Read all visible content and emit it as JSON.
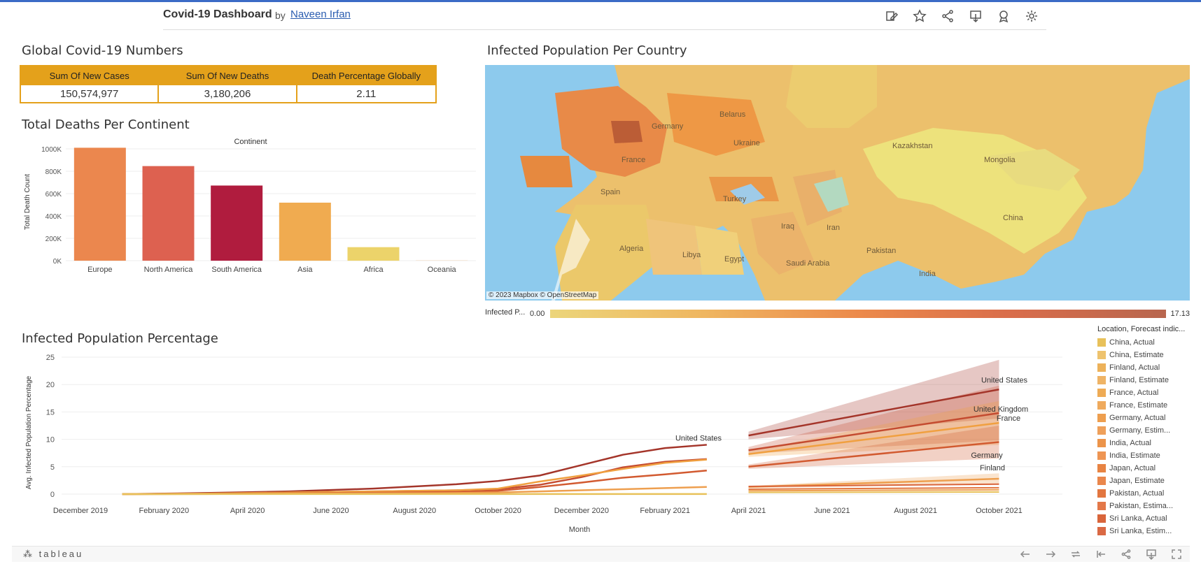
{
  "header": {
    "title": "Covid-19 Dashboard",
    "by": "by",
    "author": "Naveen Irfan",
    "icons": [
      "edit-icon",
      "star-icon",
      "share-icon",
      "download-icon",
      "badge-icon",
      "gear-icon"
    ]
  },
  "kpi": {
    "title": "Global Covid-19 Numbers",
    "columns": [
      {
        "header": "Sum Of New Cases",
        "value": "150,574,977"
      },
      {
        "header": "Sum Of New Deaths",
        "value": "3,180,206"
      },
      {
        "header": "Death Percentage Globally",
        "value": "2.11"
      }
    ]
  },
  "deaths_section": {
    "title": "Total Deaths Per Continent"
  },
  "map_section": {
    "title": "Infected Population Per Country",
    "attribution": "© 2023 Mapbox  © OpenStreetMap",
    "labels": [
      "Belarus",
      "Germany",
      "Ukraine",
      "France",
      "Kazakhstan",
      "Mongolia",
      "Spain",
      "Turkey",
      "China",
      "Iraq",
      "Iran",
      "Algeria",
      "Libya",
      "Egypt",
      "Saudi Arabia",
      "Pakistan",
      "India"
    ],
    "legend": {
      "label": "Infected P...",
      "min": "0.00",
      "max": "17.13"
    }
  },
  "line_section": {
    "title": "Infected Population Percentage",
    "legend_title": "Location, Forecast indic...",
    "legend_items": [
      {
        "label": "China, Actual",
        "color": "#e8c15a"
      },
      {
        "label": "China, Estimate",
        "color": "#eec36e"
      },
      {
        "label": "Finland, Actual",
        "color": "#edb25a"
      },
      {
        "label": "Finland, Estimate",
        "color": "#efb466"
      },
      {
        "label": "France, Actual",
        "color": "#eeab55"
      },
      {
        "label": "France, Estimate",
        "color": "#efaa5d"
      },
      {
        "label": "Germany, Actual",
        "color": "#ee9f4f"
      },
      {
        "label": "Germany, Estim...",
        "color": "#efa05a"
      },
      {
        "label": "India, Actual",
        "color": "#ec944a"
      },
      {
        "label": "India, Estimate",
        "color": "#ee9553"
      },
      {
        "label": "Japan, Actual",
        "color": "#e88443"
      },
      {
        "label": "Japan, Estimate",
        "color": "#ea874c"
      },
      {
        "label": "Pakistan, Actual",
        "color": "#e27640"
      },
      {
        "label": "Pakistan, Estima...",
        "color": "#e37849"
      },
      {
        "label": "Sri Lanka, Actual",
        "color": "#d9653b"
      },
      {
        "label": "Sri Lanka, Estim...",
        "color": "#da6944"
      }
    ]
  },
  "chart_data": [
    {
      "type": "bar",
      "title": "Total Deaths Per Continent",
      "header": "Continent",
      "categories": [
        "Europe",
        "North America",
        "South America",
        "Asia",
        "Africa",
        "Oceania"
      ],
      "values": [
        1010000,
        846000,
        672000,
        519000,
        121000,
        1000
      ],
      "colors": [
        "#eb874e",
        "#dd6150",
        "#b01c3e",
        "#f0ab50",
        "#ecd36a",
        "#e8a04e"
      ],
      "ylabel": "Total Death Count",
      "yticks": [
        "0K",
        "200K",
        "400K",
        "600K",
        "800K",
        "1000K"
      ],
      "ylim": [
        0,
        1050000
      ],
      "grid": true
    },
    {
      "type": "line",
      "title": "Infected Population Percentage",
      "xlabel": "Month",
      "ylabel": "Avg. Infected Population Percentage",
      "xticks": [
        "December 2019",
        "February 2020",
        "April 2020",
        "June 2020",
        "August 2020",
        "October 2020",
        "December 2020",
        "February 2021",
        "April 2021",
        "June 2021",
        "August 2021",
        "October 2021"
      ],
      "yticks": [
        "0",
        "5",
        "10",
        "15",
        "20",
        "25"
      ],
      "ylim": [
        0,
        25
      ],
      "labels": [
        "United States",
        "United States",
        "United Kingdom",
        "France",
        "Germany",
        "Finland"
      ],
      "x": [
        "Jan 2020",
        "Mar 2020",
        "May 2020",
        "Jul 2020",
        "Sep 2020",
        "Oct 2020",
        "Nov 2020",
        "Dec 2020",
        "Jan 2021",
        "Feb 2021",
        "Mar 2021"
      ],
      "series": [
        {
          "name": "United States",
          "color": "#a4352a",
          "values": [
            0,
            0.2,
            0.5,
            1.0,
            1.8,
            2.4,
            3.4,
            5.3,
            7.2,
            8.4,
            9.0
          ]
        },
        {
          "name": "United Kingdom",
          "color": "#c44b30",
          "values": [
            0,
            0.1,
            0.3,
            0.5,
            0.7,
            0.9,
            1.7,
            3.1,
            4.9,
            5.9,
            6.4
          ]
        },
        {
          "name": "France",
          "color": "#f0a040",
          "values": [
            0,
            0.1,
            0.3,
            0.5,
            0.7,
            1.0,
            2.3,
            3.4,
            4.6,
            5.7,
            6.3
          ]
        },
        {
          "name": "Germany",
          "color": "#d25a30",
          "values": [
            0,
            0.05,
            0.15,
            0.25,
            0.4,
            0.6,
            1.3,
            2.1,
            3.0,
            3.6,
            4.3
          ]
        },
        {
          "name": "Finland",
          "color": "#ee9f4f",
          "values": [
            0,
            0.02,
            0.1,
            0.15,
            0.2,
            0.3,
            0.5,
            0.7,
            0.9,
            1.1,
            1.3
          ]
        },
        {
          "name": "China",
          "color": "#e8c15a",
          "values": [
            0,
            0.01,
            0.01,
            0.01,
            0.01,
            0.01,
            0.01,
            0.01,
            0.01,
            0.01,
            0.01
          ]
        }
      ],
      "forecast_x": [
        "Apr 2021",
        "Oct 2021"
      ],
      "forecast": [
        {
          "name": "United States",
          "color": "#a4352a",
          "values": [
            10.7,
            19.1
          ],
          "band": [
            [
              10.0,
              11.4
            ],
            [
              13.8,
              24.5
            ]
          ]
        },
        {
          "name": "United Kingdom",
          "color": "#c44b30",
          "values": [
            8.0,
            14.8
          ],
          "band": [
            [
              7.4,
              8.6
            ],
            [
              9.8,
              19.8
            ]
          ]
        },
        {
          "name": "France",
          "color": "#f0a040",
          "values": [
            7.3,
            13.0
          ],
          "band": [
            [
              6.8,
              7.8
            ],
            [
              9.0,
              17.0
            ]
          ]
        },
        {
          "name": "Germany",
          "color": "#d25a30",
          "values": [
            5.0,
            9.5
          ],
          "band": [
            [
              4.6,
              5.4
            ],
            [
              6.5,
              12.5
            ]
          ]
        },
        {
          "name": "Finland",
          "color": "#ee9f4f",
          "values": [
            1.3,
            2.8
          ],
          "band": [
            [
              1.1,
              1.5
            ],
            [
              1.8,
              3.8
            ]
          ]
        }
      ]
    }
  ]
}
